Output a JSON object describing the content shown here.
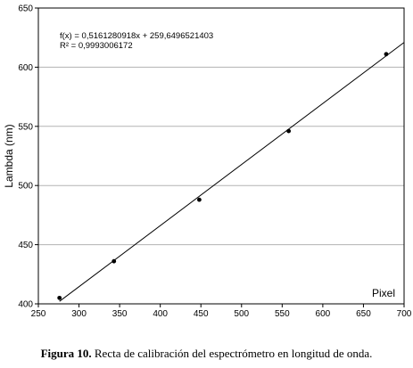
{
  "chart_data": {
    "type": "scatter",
    "x": [
      276,
      343,
      448,
      558,
      678
    ],
    "y": [
      405,
      436,
      488,
      546,
      611
    ],
    "xlabel": "Pixel",
    "ylabel": "Lambda (nm)",
    "xlim": [
      250,
      700
    ],
    "ylim": [
      400,
      650
    ],
    "xticks": [
      250,
      300,
      350,
      400,
      450,
      500,
      550,
      600,
      650,
      700
    ],
    "yticks": [
      400,
      450,
      500,
      550,
      600,
      650
    ],
    "grid": "horizontal",
    "trendline": {
      "type": "linear",
      "slope": 0.5161280918,
      "intercept": 259.6496521403,
      "x_range": [
        276,
        700
      ]
    },
    "annotations": [
      "f(x) = 0,5161280918x + 259,6496521403",
      "R² = 0,9993006172"
    ],
    "point_color": "#000000",
    "line_color": "#000000",
    "grid_color": "#b3b3b3"
  },
  "caption": {
    "label": "Figura 10.",
    "text": " Recta de calibración del espectrómetro en longitud de onda."
  }
}
